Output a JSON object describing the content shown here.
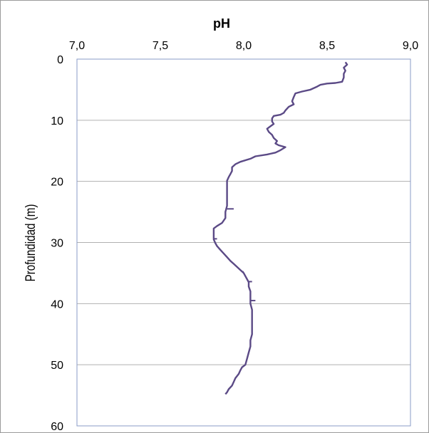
{
  "chart_data": {
    "type": "line",
    "title": "pH",
    "xlabel": "pH",
    "ylabel": "Profundidad (m)",
    "x_axis_position": "top",
    "y_axis_inverted": true,
    "xlim": [
      7.0,
      9.0
    ],
    "ylim": [
      0,
      60
    ],
    "x_ticks": [
      "7,0",
      "7,5",
      "8,0",
      "8,5",
      "9,0"
    ],
    "x_tick_values": [
      7.0,
      7.5,
      8.0,
      8.5,
      9.0
    ],
    "y_ticks": [
      "0",
      "10",
      "20",
      "30",
      "40",
      "50",
      "60"
    ],
    "y_tick_values": [
      0,
      10,
      20,
      30,
      40,
      50,
      60
    ],
    "grid": "horizontal",
    "series": [
      {
        "color": "#5b4a86",
        "points": [
          [
            8.61,
            0.5
          ],
          [
            8.62,
            0.9
          ],
          [
            8.6,
            1.4
          ],
          [
            8.61,
            1.9
          ],
          [
            8.6,
            2.4
          ],
          [
            8.6,
            3.0
          ],
          [
            8.59,
            3.7
          ],
          [
            8.55,
            3.9
          ],
          [
            8.5,
            4.0
          ],
          [
            8.46,
            4.2
          ],
          [
            8.44,
            4.5
          ],
          [
            8.4,
            5.0
          ],
          [
            8.35,
            5.3
          ],
          [
            8.31,
            5.6
          ],
          [
            8.3,
            6.2
          ],
          [
            8.29,
            6.9
          ],
          [
            8.3,
            7.4
          ],
          [
            8.27,
            7.8
          ],
          [
            8.25,
            8.4
          ],
          [
            8.24,
            8.8
          ],
          [
            8.22,
            9.1
          ],
          [
            8.18,
            9.3
          ],
          [
            8.17,
            9.7
          ],
          [
            8.17,
            10.2
          ],
          [
            8.18,
            10.6
          ],
          [
            8.16,
            11.0
          ],
          [
            8.14,
            11.4
          ],
          [
            8.15,
            11.9
          ],
          [
            8.17,
            12.4
          ],
          [
            8.18,
            12.9
          ],
          [
            8.2,
            13.4
          ],
          [
            8.19,
            13.8
          ],
          [
            8.21,
            14.1
          ],
          [
            8.25,
            14.4
          ],
          [
            8.22,
            14.9
          ],
          [
            8.19,
            15.3
          ],
          [
            8.14,
            15.6
          ],
          [
            8.07,
            15.9
          ],
          [
            8.04,
            16.3
          ],
          [
            7.98,
            16.8
          ],
          [
            7.95,
            17.2
          ],
          [
            7.93,
            17.7
          ],
          [
            7.93,
            18.3
          ],
          [
            7.92,
            18.8
          ],
          [
            7.91,
            19.3
          ],
          [
            7.9,
            19.9
          ],
          [
            7.9,
            20.6
          ],
          [
            7.9,
            21.4
          ],
          [
            7.9,
            22.3
          ],
          [
            7.9,
            23.2
          ],
          [
            7.9,
            24.0
          ],
          [
            7.89,
            25.0
          ],
          [
            7.89,
            26.0
          ],
          [
            7.87,
            26.8
          ],
          [
            7.84,
            27.3
          ],
          [
            7.82,
            27.7
          ],
          [
            7.82,
            28.3
          ],
          [
            7.82,
            28.9
          ],
          [
            7.82,
            29.5
          ],
          [
            7.83,
            30.1
          ],
          [
            7.84,
            30.6
          ],
          [
            7.86,
            31.2
          ],
          [
            7.88,
            31.8
          ],
          [
            7.9,
            32.4
          ],
          [
            7.92,
            33.0
          ],
          [
            7.94,
            33.5
          ],
          [
            7.96,
            34.0
          ],
          [
            7.98,
            34.5
          ],
          [
            8.0,
            35.0
          ],
          [
            8.01,
            35.5
          ],
          [
            8.02,
            36.0
          ],
          [
            8.03,
            36.5
          ],
          [
            8.03,
            37.2
          ],
          [
            8.04,
            38.0
          ],
          [
            8.04,
            39.0
          ],
          [
            8.04,
            40.0
          ],
          [
            8.05,
            41.0
          ],
          [
            8.05,
            42.0
          ],
          [
            8.05,
            43.0
          ],
          [
            8.05,
            44.0
          ],
          [
            8.05,
            45.0
          ],
          [
            8.04,
            46.0
          ],
          [
            8.04,
            47.0
          ],
          [
            8.03,
            48.0
          ],
          [
            8.02,
            49.0
          ],
          [
            8.01,
            50.0
          ],
          [
            7.99,
            50.4
          ],
          [
            7.98,
            50.9
          ],
          [
            7.97,
            51.5
          ],
          [
            7.95,
            52.2
          ],
          [
            7.94,
            52.8
          ],
          [
            7.93,
            53.4
          ],
          [
            7.91,
            54.0
          ],
          [
            7.9,
            54.5
          ],
          [
            7.89,
            54.8
          ]
        ]
      }
    ],
    "spikes": [
      [
        7.94,
        24.5
      ],
      [
        7.84,
        29.4
      ],
      [
        7.99,
        34.8
      ],
      [
        8.05,
        36.4
      ],
      [
        8.07,
        39.5
      ]
    ]
  }
}
